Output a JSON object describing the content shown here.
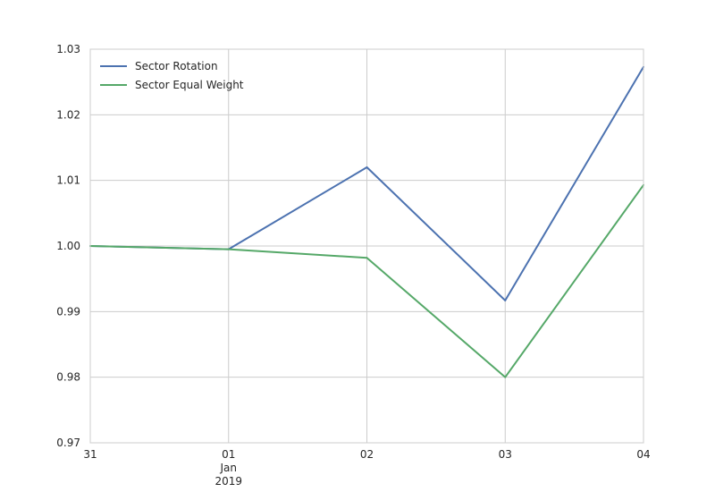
{
  "chart_data": {
    "type": "line",
    "x": [
      "2018-12-31",
      "2019-01-01",
      "2019-01-02",
      "2019-01-03",
      "2019-01-04"
    ],
    "x_tick_labels": [
      {
        "lines": [
          "31"
        ]
      },
      {
        "lines": [
          "01",
          "Jan",
          "2019"
        ]
      },
      {
        "lines": [
          "02"
        ]
      },
      {
        "lines": [
          "03"
        ]
      },
      {
        "lines": [
          "04"
        ]
      }
    ],
    "series": [
      {
        "name": "Sector Rotation",
        "color": "#4c72b0",
        "values": [
          1.0,
          0.9995,
          1.012,
          0.9917,
          1.0273
        ]
      },
      {
        "name": "Sector Equal Weight",
        "color": "#55a868",
        "values": [
          1.0,
          0.9995,
          0.9982,
          0.98,
          1.0093
        ]
      }
    ],
    "ylim": [
      0.97,
      1.03
    ],
    "yticks": [
      "0.97",
      "0.98",
      "0.99",
      "1.00",
      "1.01",
      "1.02",
      "1.03"
    ],
    "grid": true,
    "legend_position": "upper-left",
    "title": "",
    "xlabel": "",
    "ylabel": ""
  }
}
